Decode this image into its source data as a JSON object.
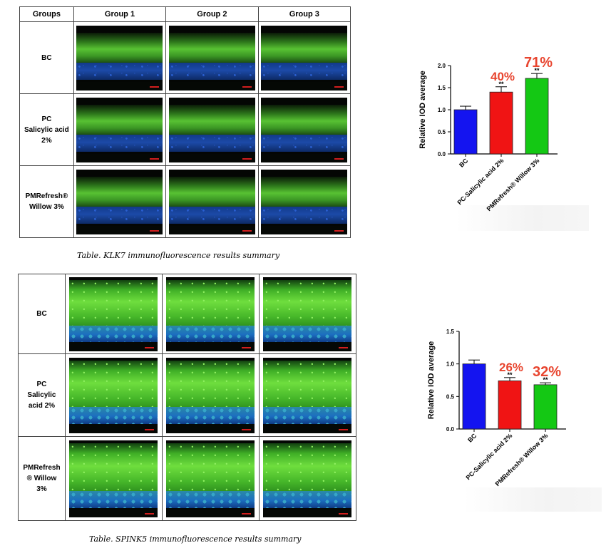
{
  "klk7": {
    "headers": [
      "Groups",
      "Group 1",
      "Group 2",
      "Group 3"
    ],
    "rows": [
      {
        "label_lines": [
          "BC"
        ]
      },
      {
        "label_lines": [
          "PC",
          "Salicylic acid 2%"
        ]
      },
      {
        "label_lines": [
          "PMRefresh®",
          "Willow 3%"
        ]
      }
    ],
    "caption": "Table. KLK7 immunofluorescence results summary"
  },
  "spink5": {
    "rows": [
      {
        "label_lines": [
          "BC"
        ]
      },
      {
        "label_lines": [
          "PC",
          "Salicylic",
          "acid 2%"
        ]
      },
      {
        "label_lines": [
          "PMRefresh",
          "® Willow",
          "3%"
        ]
      }
    ],
    "caption": "Table. SPINK5 immunofluorescence results summary"
  },
  "chart_data": [
    {
      "type": "bar",
      "categories": [
        "BC",
        "PC-Salicylic acid 2%",
        "PMRefresh® Willow 3%"
      ],
      "values": [
        1.0,
        1.4,
        1.71
      ],
      "errors": [
        0.08,
        0.12,
        0.11
      ],
      "significance": [
        "",
        "**",
        "**"
      ],
      "annotations": [
        "",
        "40%",
        "71%"
      ],
      "colors": [
        "#1414f0",
        "#f01414",
        "#14c814"
      ],
      "annotation_color": "#e8452f",
      "ylabel": "Relative IOD average",
      "ylim": [
        0,
        2.0
      ],
      "yticks": [
        "0.0",
        "0.5",
        "1.0",
        "1.5",
        "2.0"
      ]
    },
    {
      "type": "bar",
      "categories": [
        "BC",
        "PC-Salicylic acid 2%",
        "PMRefresh® Willow 3%"
      ],
      "values": [
        1.0,
        0.74,
        0.68
      ],
      "errors": [
        0.06,
        0.05,
        0.03
      ],
      "significance": [
        "",
        "**",
        "**"
      ],
      "annotations": [
        "",
        "26%",
        "32%"
      ],
      "colors": [
        "#1414f0",
        "#f01414",
        "#14c814"
      ],
      "annotation_color": "#e8452f",
      "ylabel": "Relative IOD average",
      "ylim": [
        0,
        1.5
      ],
      "yticks": [
        "0.0",
        "0.5",
        "1.0",
        "1.5"
      ]
    }
  ]
}
